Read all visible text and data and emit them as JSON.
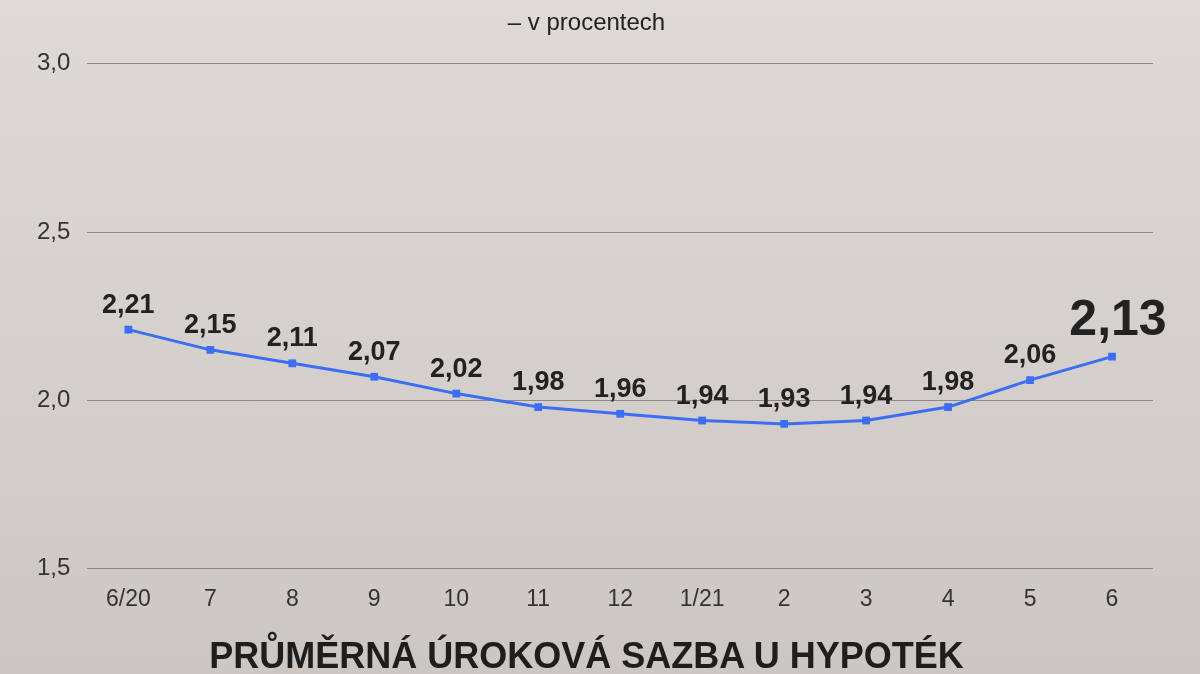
{
  "chart_data": {
    "type": "line",
    "title": "PRŮMĚRNÁ ÚROKOVÁ SAZBA U HYPOTÉK",
    "subtitle": "– v procentech",
    "categories": [
      "6/20",
      "7",
      "8",
      "9",
      "10",
      "11",
      "12",
      "1/21",
      "2",
      "3",
      "4",
      "5",
      "6"
    ],
    "values": [
      2.21,
      2.15,
      2.11,
      2.07,
      2.02,
      1.98,
      1.96,
      1.94,
      1.93,
      1.94,
      1.98,
      2.06,
      2.13
    ],
    "value_labels": [
      "2,21",
      "2,15",
      "2,11",
      "2,07",
      "2,02",
      "1,98",
      "1,96",
      "1,94",
      "1,93",
      "1,94",
      "1,98",
      "2,06",
      "2,13"
    ],
    "color": "#3b6ef5",
    "ylim": [
      1.5,
      3.0
    ],
    "yticks": [
      {
        "value": 1.5,
        "label": "1,5"
      },
      {
        "value": 2.0,
        "label": "2,0"
      },
      {
        "value": 2.5,
        "label": "2,5"
      },
      {
        "value": 3.0,
        "label": "3,0"
      }
    ],
    "grid": "y",
    "marker": "square"
  }
}
